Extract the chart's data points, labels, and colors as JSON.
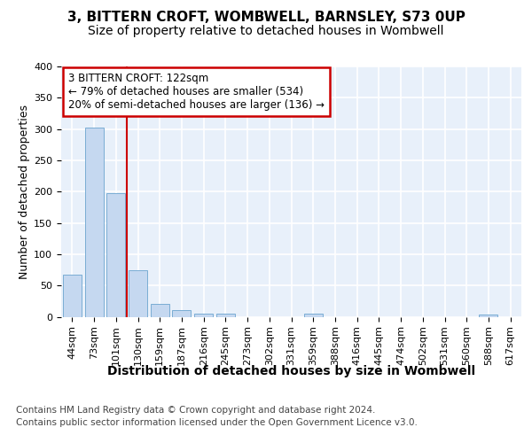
{
  "title": "3, BITTERN CROFT, WOMBWELL, BARNSLEY, S73 0UP",
  "subtitle": "Size of property relative to detached houses in Wombwell",
  "xlabel": "Distribution of detached houses by size in Wombwell",
  "ylabel": "Number of detached properties",
  "footer_line1": "Contains HM Land Registry data © Crown copyright and database right 2024.",
  "footer_line2": "Contains public sector information licensed under the Open Government Licence v3.0.",
  "bin_labels": [
    "44sqm",
    "73sqm",
    "101sqm",
    "130sqm",
    "159sqm",
    "187sqm",
    "216sqm",
    "245sqm",
    "273sqm",
    "302sqm",
    "331sqm",
    "359sqm",
    "388sqm",
    "416sqm",
    "445sqm",
    "474sqm",
    "502sqm",
    "531sqm",
    "560sqm",
    "588sqm",
    "617sqm"
  ],
  "bin_values": [
    67,
    303,
    197,
    75,
    20,
    10,
    5,
    5,
    0,
    0,
    0,
    5,
    0,
    0,
    0,
    0,
    0,
    0,
    0,
    3,
    0
  ],
  "bar_color": "#c5d8f0",
  "bar_edge_color": "#7aadd4",
  "property_line_color": "#cc0000",
  "annotation_text_line1": "3 BITTERN CROFT: 122sqm",
  "annotation_text_line2": "← 79% of detached houses are smaller (534)",
  "annotation_text_line3": "20% of semi-detached houses are larger (136) →",
  "annotation_box_color": "#cc0000",
  "ylim": [
    0,
    400
  ],
  "yticks": [
    0,
    50,
    100,
    150,
    200,
    250,
    300,
    350,
    400
  ],
  "bg_color": "#e8f0fa",
  "grid_color": "#ffffff",
  "title_fontsize": 11,
  "subtitle_fontsize": 10,
  "ylabel_fontsize": 9,
  "xlabel_fontsize": 10,
  "tick_fontsize": 8,
  "footer_fontsize": 7.5
}
